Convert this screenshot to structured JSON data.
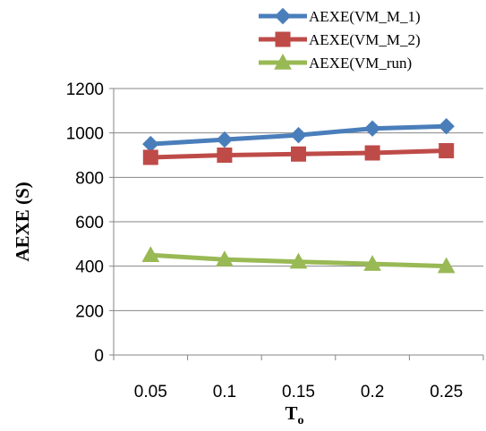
{
  "chart_data": {
    "type": "line",
    "x": [
      "0.05",
      "0.1",
      "0.15",
      "0.2",
      "0.25"
    ],
    "series": [
      {
        "name": "AEXE(VM_M_1)",
        "values": [
          950,
          970,
          990,
          1020,
          1030
        ],
        "color": "#4A7EBB",
        "marker": "diamond"
      },
      {
        "name": "AEXE(VM_M_2)",
        "values": [
          890,
          900,
          905,
          910,
          920
        ],
        "color": "#BE4B48",
        "marker": "square"
      },
      {
        "name": "AEXE(VM_run)",
        "values": [
          450,
          430,
          420,
          410,
          400
        ],
        "color": "#98B954",
        "marker": "triangle"
      }
    ],
    "yticks": [
      "0",
      "200",
      "400",
      "600",
      "800",
      "1000",
      "1200"
    ],
    "ylim": [
      0,
      1200
    ],
    "ylabel": "AEXE (S)",
    "xlabel": "T",
    "xlabel_sub": "o",
    "grid": "horizontal",
    "legend": "top-right"
  }
}
